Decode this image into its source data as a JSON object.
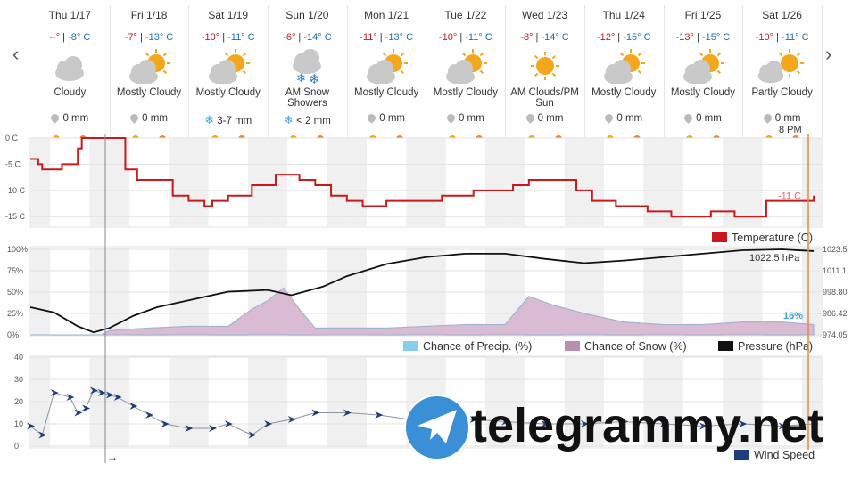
{
  "forecast": [
    {
      "day": "Thu 1/17",
      "hi": "--°",
      "lo": "-8° C",
      "cond": "Cloudy",
      "icon": "cloudy-icon",
      "precip": "0 mm",
      "snow": false
    },
    {
      "day": "Fri 1/18",
      "hi": "-7°",
      "lo": "-13° C",
      "cond": "Mostly Cloudy",
      "icon": "mostly-cloudy-icon",
      "precip": "0 mm",
      "snow": false
    },
    {
      "day": "Sat 1/19",
      "hi": "-10°",
      "lo": "-11° C",
      "cond": "Mostly Cloudy",
      "icon": "mostly-cloudy-icon",
      "precip": "3-7 mm",
      "snow": true
    },
    {
      "day": "Sun 1/20",
      "hi": "-6°",
      "lo": "-14° C",
      "cond": "AM Snow Showers",
      "icon": "snow-showers-icon",
      "precip": "< 2 mm",
      "snow": true
    },
    {
      "day": "Mon 1/21",
      "hi": "-11°",
      "lo": "-13° C",
      "cond": "Mostly Cloudy",
      "icon": "mostly-cloudy-icon",
      "precip": "0 mm",
      "snow": false
    },
    {
      "day": "Tue 1/22",
      "hi": "-10°",
      "lo": "-11° C",
      "cond": "Mostly Cloudy",
      "icon": "mostly-cloudy-icon",
      "precip": "0 mm",
      "snow": false
    },
    {
      "day": "Wed 1/23",
      "hi": "-8°",
      "lo": "-14° C",
      "cond": "AM Clouds/PM Sun",
      "icon": "clouds-sun-icon",
      "precip": "0 mm",
      "snow": false
    },
    {
      "day": "Thu 1/24",
      "hi": "-12°",
      "lo": "-15° C",
      "cond": "Mostly Cloudy",
      "icon": "mostly-cloudy-icon",
      "precip": "0 mm",
      "snow": false
    },
    {
      "day": "Fri 1/25",
      "hi": "-13°",
      "lo": "-15° C",
      "cond": "Mostly Cloudy",
      "icon": "mostly-cloudy-icon",
      "precip": "0 mm",
      "snow": false
    },
    {
      "day": "Sat 1/26",
      "hi": "-10°",
      "lo": "-11° C",
      "cond": "Partly Cloudy",
      "icon": "partly-cloudy-icon",
      "precip": "0 mm",
      "snow": false
    }
  ],
  "nav": {
    "prev": "‹",
    "next": "›"
  },
  "cursor_label": "→",
  "time_marker_label": "8 PM",
  "colors": {
    "temperature": "#c8191d",
    "precip": "#87ceeb",
    "snow": "#b88fb0",
    "snow_fill": "#d9bcd3",
    "pressure": "#111111",
    "wind": "#1f3d7a",
    "shade": "#f0f0f0",
    "marker": "#e8873a"
  },
  "watermark": {
    "text": "telegrammy.net"
  },
  "chart_data": [
    {
      "type": "line",
      "title": "",
      "legend": [
        {
          "name": "Temperature (C)",
          "color": "#c8191d"
        }
      ],
      "y_ticks": [
        "0 C",
        "-5 C",
        "-10 C",
        "-15 C"
      ],
      "ylim": [
        -17,
        0
      ],
      "x_days": [
        "Thu 1/17",
        "Fri 1/18",
        "Sat 1/19",
        "Sun 1/20",
        "Mon 1/21",
        "Tue 1/22",
        "Wed 1/23",
        "Thu 1/24",
        "Fri 1/25",
        "Sat 1/26"
      ],
      "series": [
        {
          "name": "Temperature (C)",
          "x": [
            0,
            0.1,
            0.15,
            0.35,
            0.4,
            0.6,
            0.65,
            0.8,
            1.2,
            1.35,
            1.5,
            1.8,
            2.0,
            2.2,
            2.3,
            2.5,
            2.8,
            3.1,
            3.4,
            3.6,
            3.8,
            4.0,
            4.2,
            4.5,
            4.8,
            5.2,
            5.6,
            5.9,
            6.1,
            6.3,
            6.6,
            6.9,
            7.1,
            7.4,
            7.8,
            8.1,
            8.4,
            8.6,
            8.9,
            9.3,
            9.5,
            9.9
          ],
          "y": [
            -4,
            -5,
            -6,
            -6,
            -5,
            -2,
            0,
            0,
            -6,
            -8,
            -8,
            -11,
            -12,
            -13,
            -12,
            -11,
            -9,
            -7,
            -8,
            -9,
            -11,
            -12,
            -13,
            -12,
            -12,
            -11,
            -10,
            -10,
            -9,
            -8,
            -8,
            -10,
            -12,
            -13,
            -14,
            -15,
            -15,
            -14,
            -15,
            -12,
            -12,
            -11
          ]
        }
      ],
      "annotation": "-11 C"
    },
    {
      "type": "area",
      "title": "",
      "legend": [
        {
          "name": "Chance of Precip. (%)",
          "color": "#87ceeb"
        },
        {
          "name": "Chance of Snow (%)",
          "color": "#b88fb0"
        },
        {
          "name": "Pressure (hPa)",
          "color": "#111111"
        }
      ],
      "y_ticks_left": [
        "100%",
        "75%",
        "50%",
        "25%",
        "0%"
      ],
      "y_ticks_right": [
        "1023.5",
        "1011.1",
        "998.80",
        "986.42",
        "974.05"
      ],
      "ylim": [
        0,
        100
      ],
      "pressure_lim": [
        974.05,
        1023.5
      ],
      "annotations": {
        "pressure": "1022.5 hPa",
        "precip": "16%"
      },
      "series": [
        {
          "name": "Chance of Snow (%)",
          "x": [
            0,
            0.9,
            1.0,
            1.5,
            2.0,
            2.5,
            2.8,
            3.0,
            3.2,
            3.4,
            3.6,
            4.0,
            4.5,
            5.0,
            5.5,
            6.0,
            6.3,
            6.6,
            7.0,
            7.5,
            8.0,
            8.5,
            9.0,
            9.5,
            9.9
          ],
          "y": [
            0,
            0,
            5,
            8,
            10,
            10,
            30,
            40,
            55,
            30,
            8,
            8,
            8,
            10,
            12,
            12,
            45,
            35,
            25,
            15,
            12,
            12,
            15,
            15,
            12
          ]
        },
        {
          "name": "Pressure (hPa)",
          "x": [
            0,
            0.3,
            0.6,
            0.8,
            1.0,
            1.3,
            1.6,
            2.0,
            2.5,
            3.0,
            3.3,
            3.7,
            4.0,
            4.5,
            5.0,
            5.5,
            6.0,
            6.5,
            7.0,
            7.5,
            8.0,
            8.5,
            9.0,
            9.5,
            9.9
          ],
          "y": [
            990,
            987,
            979,
            975.5,
            978,
            985,
            990,
            994,
            999,
            1000,
            997,
            1002,
            1008,
            1015,
            1019,
            1021,
            1021,
            1018,
            1015.5,
            1017,
            1019,
            1021,
            1023,
            1023.5,
            1022.5
          ]
        }
      ]
    },
    {
      "type": "line",
      "title": "",
      "legend": [
        {
          "name": "Wind Speed",
          "color": "#1f3d7a"
        }
      ],
      "y_ticks": [
        "40",
        "30",
        "20",
        "10",
        "0"
      ],
      "ylim": [
        0,
        40
      ],
      "series": [
        {
          "name": "Wind Speed",
          "x": [
            0,
            0.15,
            0.3,
            0.5,
            0.6,
            0.7,
            0.8,
            0.9,
            1.0,
            1.1,
            1.3,
            1.5,
            1.7,
            2.0,
            2.3,
            2.5,
            2.8,
            3.0,
            3.3,
            3.6,
            4.0,
            4.4,
            4.8,
            5.2,
            5.6,
            6.0,
            6.5,
            7.0,
            7.5,
            8.0,
            8.5,
            9.0,
            9.5,
            9.9
          ],
          "y": [
            9,
            5,
            24,
            22,
            15,
            17,
            25,
            24,
            23,
            22,
            18,
            14,
            10,
            8,
            8,
            10,
            5,
            10,
            12,
            15,
            15,
            14,
            12,
            13,
            12,
            11,
            10,
            10,
            11,
            10,
            9,
            10,
            9,
            10
          ]
        }
      ]
    }
  ]
}
